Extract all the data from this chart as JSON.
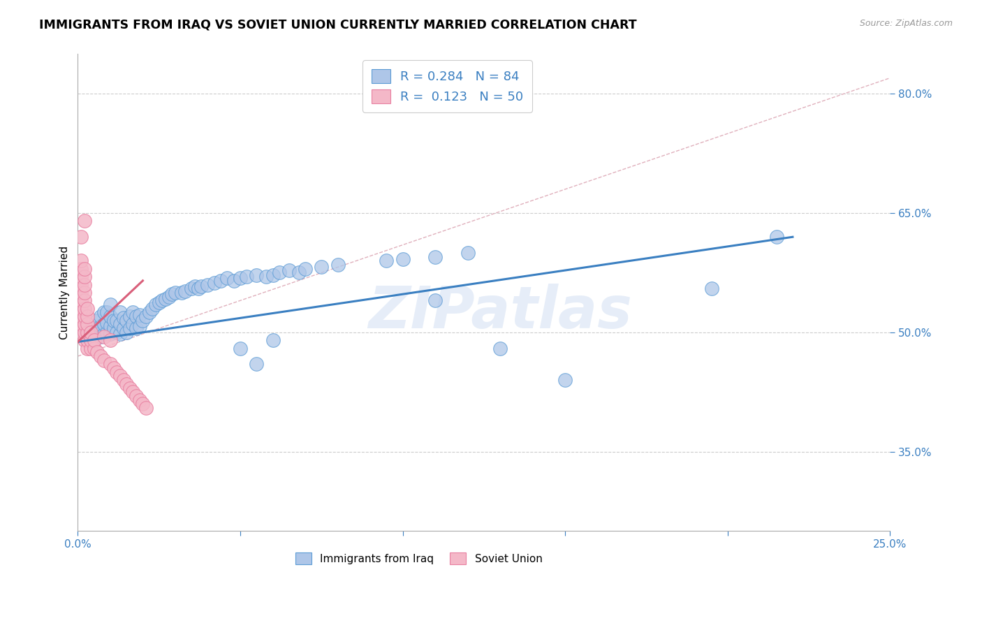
{
  "title": "IMMIGRANTS FROM IRAQ VS SOVIET UNION CURRENTLY MARRIED CORRELATION CHART",
  "source": "Source: ZipAtlas.com",
  "ylabel": "Currently Married",
  "xlim": [
    0.0,
    0.25
  ],
  "ylim": [
    0.25,
    0.85
  ],
  "iraq_color": "#aec6e8",
  "soviet_color": "#f4b8c8",
  "iraq_edge_color": "#5b9bd5",
  "soviet_edge_color": "#e87fa0",
  "iraq_line_color": "#3a7fc1",
  "soviet_line_color": "#d95f7a",
  "diag_color": "#e0b0bc",
  "legend_iraq_R": "0.284",
  "legend_iraq_N": "84",
  "legend_soviet_R": "0.123",
  "legend_soviet_N": "50",
  "watermark": "ZIPatlas",
  "iraq_x": [
    0.002,
    0.003,
    0.003,
    0.005,
    0.005,
    0.006,
    0.006,
    0.007,
    0.007,
    0.007,
    0.008,
    0.008,
    0.008,
    0.009,
    0.009,
    0.009,
    0.01,
    0.01,
    0.01,
    0.01,
    0.011,
    0.011,
    0.012,
    0.012,
    0.013,
    0.013,
    0.013,
    0.014,
    0.014,
    0.015,
    0.015,
    0.016,
    0.016,
    0.017,
    0.017,
    0.018,
    0.018,
    0.019,
    0.019,
    0.02,
    0.021,
    0.022,
    0.023,
    0.024,
    0.025,
    0.026,
    0.027,
    0.028,
    0.029,
    0.03,
    0.032,
    0.033,
    0.035,
    0.036,
    0.037,
    0.038,
    0.04,
    0.042,
    0.044,
    0.046,
    0.048,
    0.05,
    0.052,
    0.055,
    0.058,
    0.06,
    0.062,
    0.065,
    0.068,
    0.07,
    0.075,
    0.08,
    0.095,
    0.1,
    0.11,
    0.12,
    0.13,
    0.15,
    0.195,
    0.215,
    0.05,
    0.055,
    0.06,
    0.11
  ],
  "iraq_y": [
    0.5,
    0.51,
    0.495,
    0.505,
    0.49,
    0.5,
    0.515,
    0.495,
    0.508,
    0.52,
    0.498,
    0.51,
    0.525,
    0.5,
    0.512,
    0.525,
    0.498,
    0.508,
    0.52,
    0.535,
    0.505,
    0.515,
    0.5,
    0.515,
    0.498,
    0.51,
    0.525,
    0.505,
    0.518,
    0.5,
    0.515,
    0.505,
    0.52,
    0.51,
    0.525,
    0.505,
    0.52,
    0.508,
    0.522,
    0.515,
    0.52,
    0.525,
    0.53,
    0.535,
    0.538,
    0.54,
    0.542,
    0.545,
    0.548,
    0.55,
    0.55,
    0.552,
    0.555,
    0.558,
    0.555,
    0.558,
    0.56,
    0.562,
    0.565,
    0.568,
    0.565,
    0.568,
    0.57,
    0.572,
    0.57,
    0.572,
    0.575,
    0.578,
    0.575,
    0.58,
    0.582,
    0.585,
    0.59,
    0.592,
    0.595,
    0.6,
    0.48,
    0.44,
    0.555,
    0.62,
    0.48,
    0.46,
    0.49,
    0.54
  ],
  "soviet_x": [
    0.001,
    0.001,
    0.001,
    0.001,
    0.001,
    0.001,
    0.001,
    0.001,
    0.001,
    0.001,
    0.002,
    0.002,
    0.002,
    0.002,
    0.002,
    0.002,
    0.002,
    0.002,
    0.002,
    0.002,
    0.003,
    0.003,
    0.003,
    0.003,
    0.003,
    0.003,
    0.004,
    0.004,
    0.004,
    0.005,
    0.005,
    0.006,
    0.007,
    0.008,
    0.008,
    0.01,
    0.01,
    0.011,
    0.012,
    0.013,
    0.014,
    0.015,
    0.016,
    0.017,
    0.018,
    0.019,
    0.02,
    0.021,
    0.001,
    0.002
  ],
  "soviet_y": [
    0.5,
    0.51,
    0.52,
    0.53,
    0.54,
    0.55,
    0.56,
    0.57,
    0.58,
    0.59,
    0.49,
    0.5,
    0.51,
    0.52,
    0.53,
    0.54,
    0.55,
    0.56,
    0.57,
    0.58,
    0.48,
    0.49,
    0.5,
    0.51,
    0.52,
    0.53,
    0.48,
    0.49,
    0.5,
    0.48,
    0.49,
    0.475,
    0.47,
    0.465,
    0.495,
    0.46,
    0.49,
    0.455,
    0.45,
    0.445,
    0.44,
    0.435,
    0.43,
    0.425,
    0.42,
    0.415,
    0.41,
    0.405,
    0.62,
    0.64
  ],
  "iraq_line_x": [
    0.0,
    0.22
  ],
  "iraq_line_y": [
    0.488,
    0.62
  ],
  "soviet_line_x": [
    0.0,
    0.02
  ],
  "soviet_line_y": [
    0.488,
    0.565
  ],
  "diag_line_x": [
    0.0,
    0.25
  ],
  "diag_line_y": [
    0.47,
    0.82
  ]
}
